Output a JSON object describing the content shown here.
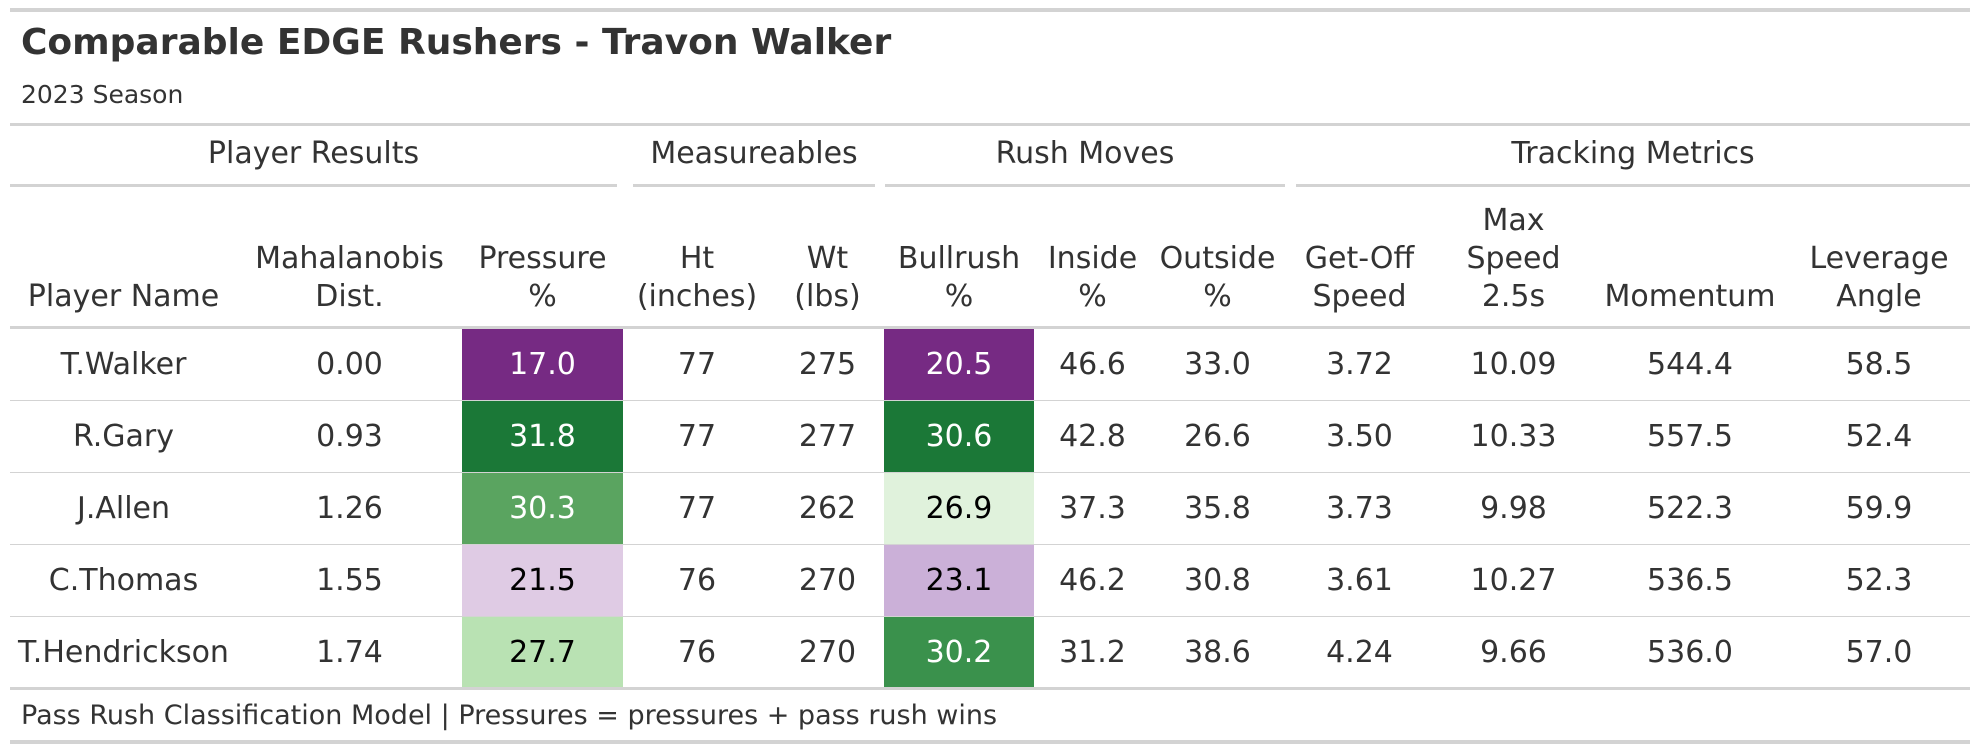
{
  "title": "Comparable EDGE Rushers - Travon Walker",
  "subtitle": "2023 Season",
  "spanners": {
    "player_results": "Player Results",
    "measureables": "Measureables",
    "rush_moves": "Rush Moves",
    "tracking_metrics": "Tracking Metrics"
  },
  "columns": {
    "player_name": "Player Name",
    "mahalanobis_1": "Mahalanobis",
    "mahalanobis_2": "Dist.",
    "pressure_1": "Pressure",
    "pressure_2": "%",
    "ht_1": "Ht",
    "ht_2": "(inches)",
    "wt_1": "Wt",
    "wt_2": "(lbs)",
    "bullrush_1": "Bullrush",
    "bullrush_2": "%",
    "inside_1": "Inside",
    "inside_2": "%",
    "outside_1": "Outside",
    "outside_2": "%",
    "getoff_1": "Get-Off",
    "getoff_2": "Speed",
    "maxspeed_1": "Max",
    "maxspeed_2": "Speed",
    "maxspeed_3": "2.5s",
    "momentum": "Momentum",
    "leverage_1": "Leverage",
    "leverage_2": "Angle"
  },
  "rows": [
    {
      "name": "T.Walker",
      "dist": "0.00",
      "pressure": "17.0",
      "pressure_bg": "#762a83",
      "pressure_fg": "#ffffff",
      "ht": "77",
      "wt": "275",
      "bullrush": "20.5",
      "bullrush_bg": "#762a83",
      "bullrush_fg": "#ffffff",
      "inside": "46.6",
      "outside": "33.0",
      "getoff": "3.72",
      "maxspeed": "10.09",
      "momentum": "544.4",
      "leverage": "58.5"
    },
    {
      "name": "R.Gary",
      "dist": "0.93",
      "pressure": "31.8",
      "pressure_bg": "#1b7837",
      "pressure_fg": "#ffffff",
      "ht": "77",
      "wt": "277",
      "bullrush": "30.6",
      "bullrush_bg": "#1b7837",
      "bullrush_fg": "#ffffff",
      "inside": "42.8",
      "outside": "26.6",
      "getoff": "3.50",
      "maxspeed": "10.33",
      "momentum": "557.5",
      "leverage": "52.4"
    },
    {
      "name": "J.Allen",
      "dist": "1.26",
      "pressure": "30.3",
      "pressure_bg": "#5aa460",
      "pressure_fg": "#ffffff",
      "ht": "77",
      "wt": "262",
      "bullrush": "26.9",
      "bullrush_bg": "#e0f2dc",
      "bullrush_fg": "#000000",
      "inside": "37.3",
      "outside": "35.8",
      "getoff": "3.73",
      "maxspeed": "9.98",
      "momentum": "522.3",
      "leverage": "59.9"
    },
    {
      "name": "C.Thomas",
      "dist": "1.55",
      "pressure": "21.5",
      "pressure_bg": "#dfcbe4",
      "pressure_fg": "#000000",
      "ht": "76",
      "wt": "270",
      "bullrush": "23.1",
      "bullrush_bg": "#cbb0d8",
      "bullrush_fg": "#000000",
      "inside": "46.2",
      "outside": "30.8",
      "getoff": "3.61",
      "maxspeed": "10.27",
      "momentum": "536.5",
      "leverage": "52.3"
    },
    {
      "name": "T.Hendrickson",
      "dist": "1.74",
      "pressure": "27.7",
      "pressure_bg": "#b9e2b3",
      "pressure_fg": "#000000",
      "ht": "76",
      "wt": "270",
      "bullrush": "30.2",
      "bullrush_bg": "#3a914c",
      "bullrush_fg": "#ffffff",
      "inside": "31.2",
      "outside": "38.6",
      "getoff": "4.24",
      "maxspeed": "9.66",
      "momentum": "536.0",
      "leverage": "57.0"
    }
  ],
  "footnote": "Pass Rush Classification Model | Pressures = pressures + pass rush wins"
}
